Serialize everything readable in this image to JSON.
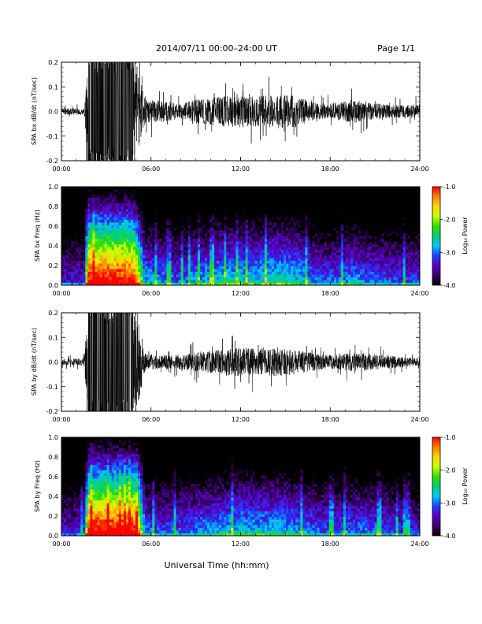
{
  "header": {
    "title": "2014/07/11  00:00–24:00 UT",
    "page": "Page 1/1"
  },
  "footer": {
    "xlabel": "Universal Time (hh:mm)"
  },
  "colors": {
    "trace": "#000000",
    "frame": "#000000",
    "background": "#ffffff"
  },
  "colorbar": {
    "label": "Log₁₀ Power",
    "ticks": [
      "-1.0",
      "-2.0",
      "-3.0",
      "-4.0"
    ],
    "range": [
      -4.0,
      -1.0
    ],
    "stops": [
      "#000000",
      "#3a0066",
      "#5a00c8",
      "#1a40ff",
      "#00c8ff",
      "#00d070",
      "#30e000",
      "#c8ff00",
      "#ffd800",
      "#ff8000",
      "#ff0000"
    ]
  },
  "chart_data": [
    {
      "type": "line",
      "ylabel": "SPA bx dB/dt (nT/sec)",
      "x_ticks": [
        "00:00",
        "06:00",
        "12:00",
        "18:00",
        "24:00"
      ],
      "y_ticks": [
        "0.2",
        "0.1",
        "0.0",
        "-0.1",
        "-0.2"
      ],
      "ylim": [
        -0.2,
        0.2
      ],
      "xlim": [
        "00:00",
        "24:00"
      ],
      "grid": false,
      "activity_profile": {
        "x_hours": [
          0,
          1.5,
          1.8,
          2.5,
          3.5,
          4.8,
          5.2,
          5.6,
          6.5,
          8,
          9,
          10.5,
          12,
          13,
          14.5,
          15.5,
          16.5,
          17.5,
          18.5,
          19.5,
          20.5,
          21.5,
          23,
          24
        ],
        "amplitude": [
          0.012,
          0.014,
          0.2,
          0.2,
          0.2,
          0.2,
          0.14,
          0.05,
          0.045,
          0.03,
          0.05,
          0.06,
          0.065,
          0.06,
          0.07,
          0.065,
          0.045,
          0.03,
          0.035,
          0.05,
          0.035,
          0.03,
          0.025,
          0.03
        ]
      }
    },
    {
      "type": "heatmap",
      "ylabel": "SPA bx Freq (Hz)",
      "x_ticks": [
        "00:00",
        "06:00",
        "12:00",
        "18:00",
        "24:00"
      ],
      "y_ticks": [
        "1.0",
        "0.8",
        "0.6",
        "0.4",
        "0.2",
        "0.0"
      ],
      "ylim": [
        0.0,
        1.0
      ],
      "xlim": [
        "00:00",
        "24:00"
      ],
      "z_range": [
        -4.0,
        -1.0
      ]
    },
    {
      "type": "line",
      "ylabel": "SPA by dB/dt (nT/sec)",
      "x_ticks": [
        "00:00",
        "06:00",
        "12:00",
        "18:00",
        "24:00"
      ],
      "y_ticks": [
        "0.2",
        "0.1",
        "0.0",
        "-0.1",
        "-0.2"
      ],
      "ylim": [
        -0.2,
        0.2
      ],
      "xlim": [
        "00:00",
        "24:00"
      ],
      "grid": false,
      "activity_profile": {
        "x_hours": [
          0,
          1.5,
          1.8,
          2.5,
          3.5,
          4.8,
          5.2,
          5.6,
          6.5,
          8,
          9,
          10.5,
          12,
          13,
          14.5,
          15.5,
          16.5,
          17.5,
          18.5,
          19.5,
          20.5,
          21.5,
          23,
          24
        ],
        "amplitude": [
          0.012,
          0.015,
          0.2,
          0.2,
          0.2,
          0.2,
          0.16,
          0.035,
          0.03,
          0.03,
          0.04,
          0.05,
          0.06,
          0.055,
          0.06,
          0.05,
          0.04,
          0.03,
          0.03,
          0.04,
          0.035,
          0.03,
          0.02,
          0.015
        ]
      }
    },
    {
      "type": "heatmap",
      "ylabel": "SPA by Freq (Hz)",
      "x_ticks": [
        "00:00",
        "06:00",
        "12:00",
        "18:00",
        "24:00"
      ],
      "y_ticks": [
        "1.0",
        "0.8",
        "0.6",
        "0.4",
        "0.2",
        "0.0"
      ],
      "ylim": [
        0.0,
        1.0
      ],
      "xlim": [
        "00:00",
        "24:00"
      ],
      "z_range": [
        -4.0,
        -1.0
      ]
    }
  ]
}
